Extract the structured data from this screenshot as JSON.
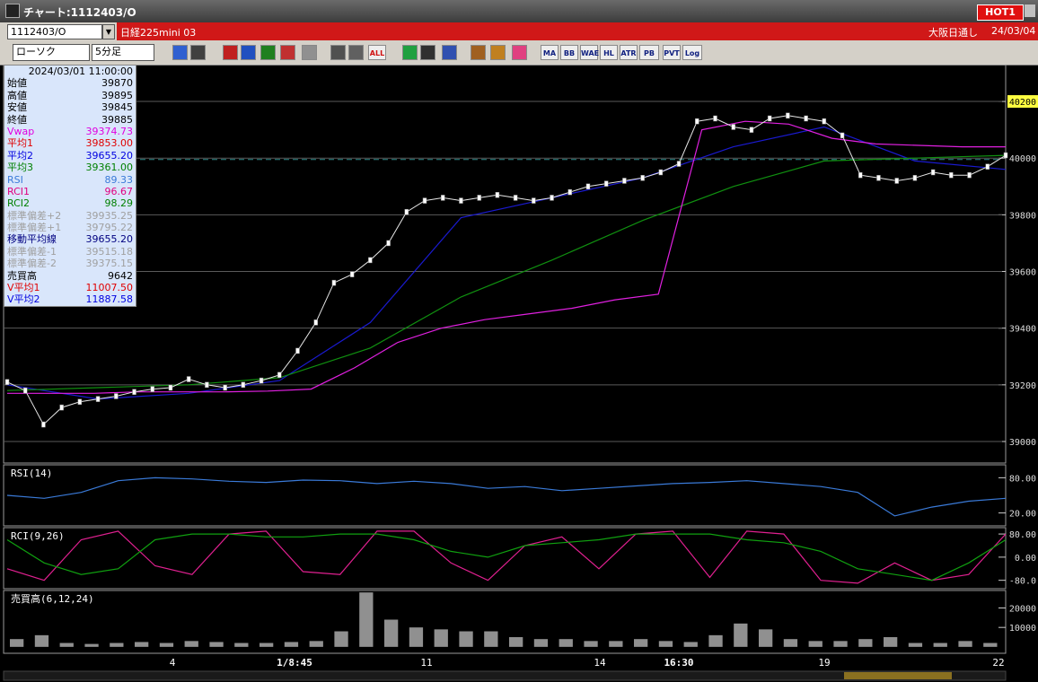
{
  "window": {
    "title": "チャート:1112403/O",
    "hot_button": "HOT1"
  },
  "header": {
    "symbol_code": "1112403/O",
    "symbol_name": "日経225mini 03",
    "session": "大阪日通し",
    "date": "24/03/04"
  },
  "toolbar": {
    "chart_style": "ローソク",
    "interval": "5分足",
    "buttons": [
      "ALL",
      "MA",
      "BB",
      "WAE",
      "HL",
      "ATR",
      "PB",
      "PVT",
      "Log"
    ]
  },
  "info_panel": {
    "timestamp": "2024/03/01 11:00:00",
    "rows": [
      {
        "label": "始値",
        "value": "39870",
        "color": "#000000"
      },
      {
        "label": "高値",
        "value": "39895",
        "color": "#000000"
      },
      {
        "label": "安値",
        "value": "39845",
        "color": "#000000"
      },
      {
        "label": "終値",
        "value": "39885",
        "color": "#000000"
      },
      {
        "label": "Vwap",
        "value": "39374.73",
        "color": "#e000e0"
      },
      {
        "label": "平均1",
        "value": "39853.00",
        "color": "#e00000"
      },
      {
        "label": "平均2",
        "value": "39655.20",
        "color": "#0000e0"
      },
      {
        "label": "平均3",
        "value": "39361.00",
        "color": "#008000"
      },
      {
        "label": "RSI",
        "value": "89.33",
        "color": "#3a7ad8"
      },
      {
        "label": "RCI1",
        "value": "96.67",
        "color": "#e00080"
      },
      {
        "label": "RCI2",
        "value": "98.29",
        "color": "#008000"
      },
      {
        "label": "標準偏差+2",
        "value": "39935.25",
        "color": "#a0a0a0"
      },
      {
        "label": "標準偏差+1",
        "value": "39795.22",
        "color": "#a0a0a0"
      },
      {
        "label": "移動平均線",
        "value": "39655.20",
        "color": "#000080"
      },
      {
        "label": "標準偏差-1",
        "value": "39515.18",
        "color": "#a0a0a0"
      },
      {
        "label": "標準偏差-2",
        "value": "39375.15",
        "color": "#a0a0a0"
      },
      {
        "label": "売買高",
        "value": "9642",
        "color": "#000000"
      },
      {
        "label": "V平均1",
        "value": "11007.50",
        "color": "#e00000"
      },
      {
        "label": "V平均2",
        "value": "11887.58",
        "color": "#0000e0"
      }
    ]
  },
  "price_panel": {
    "ylim": [
      38924,
      40330
    ],
    "yticks": [
      39000,
      39200,
      39400,
      39600,
      39800,
      40000,
      40200
    ],
    "highlight_tick": 40200,
    "dashed_level": 39995,
    "close": {
      "color": "#e8e8e8",
      "values": [
        39210,
        39180,
        39060,
        39120,
        39140,
        39150,
        39160,
        39175,
        39185,
        39190,
        39220,
        39200,
        39190,
        39200,
        39215,
        39235,
        39320,
        39420,
        39560,
        39590,
        39640,
        39700,
        39810,
        39850,
        39860,
        39850,
        39860,
        39870,
        39860,
        39850,
        39860,
        39880,
        39900,
        39910,
        39920,
        39930,
        39950,
        39980,
        40130,
        40140,
        40110,
        40100,
        40140,
        40150,
        40140,
        40130,
        40080,
        39940,
        39930,
        39920,
        39930,
        39950,
        39940,
        39940,
        39970,
        40010
      ]
    },
    "lines": [
      {
        "color": "#1a1ad0",
        "values": [
          39200,
          39150,
          39170,
          39215,
          39420,
          39790,
          39860,
          39930,
          40040,
          40110,
          39990,
          39960
        ]
      },
      {
        "color": "#109010",
        "values": [
          39180,
          39190,
          39200,
          39225,
          39330,
          39510,
          39640,
          39780,
          39900,
          39990,
          40000,
          40010
        ]
      },
      {
        "color": "#e020e0",
        "values": [
          39170,
          39170,
          39170,
          39175,
          39175,
          39175,
          39178,
          39185,
          39260,
          39350,
          39400,
          39430,
          39450,
          39470,
          39500,
          39520,
          40100,
          40130,
          40120,
          40070,
          40050,
          40045,
          40040,
          40040
        ]
      }
    ]
  },
  "rsi_panel": {
    "label": "RSI(14)",
    "ylim": [
      -2,
      102
    ],
    "yticks": [
      {
        "value": 80,
        "label": "80.00"
      },
      {
        "value": 20,
        "label": "20.00"
      }
    ],
    "lines": [
      {
        "color": "#3a7ad8",
        "values": [
          50,
          45,
          55,
          75,
          80,
          78,
          74,
          72,
          76,
          75,
          70,
          74,
          70,
          62,
          65,
          58,
          62,
          66,
          70,
          72,
          75,
          70,
          65,
          55,
          15,
          30,
          40,
          45
        ]
      }
    ]
  },
  "rci_panel": {
    "label": "RCI(9,26)",
    "ylim": [
      -109,
      102
    ],
    "yticks": [
      {
        "value": 80,
        "label": "80.00"
      },
      {
        "value": 0,
        "label": "0.00"
      },
      {
        "value": -80,
        "label": "-80.0"
      }
    ],
    "lines": [
      {
        "color": "#e02090",
        "values": [
          -40,
          -80,
          60,
          90,
          -30,
          -60,
          80,
          90,
          -50,
          -60,
          90,
          90,
          -20,
          -80,
          40,
          70,
          -40,
          80,
          90,
          -70,
          90,
          80,
          -80,
          -90,
          -20,
          -80,
          -60,
          80
        ]
      },
      {
        "color": "#10a010",
        "values": [
          60,
          -20,
          -60,
          -40,
          60,
          80,
          80,
          70,
          70,
          80,
          80,
          60,
          20,
          0,
          40,
          50,
          60,
          80,
          80,
          80,
          60,
          50,
          20,
          -40,
          -60,
          -80,
          -20,
          60
        ]
      }
    ]
  },
  "volume_panel": {
    "label": "売買高(6,12,24)",
    "ylim": [
      -3300,
      29000
    ],
    "yticks": [
      20000,
      10000
    ],
    "bar_color": "#909090",
    "values": [
      4000,
      6000,
      2000,
      1500,
      2000,
      2500,
      2000,
      3000,
      2500,
      2000,
      2000,
      2500,
      3000,
      8000,
      28000,
      14000,
      10000,
      9000,
      8000,
      8000,
      5000,
      4000,
      4000,
      3000,
      3000,
      4000,
      3000,
      2500,
      6000,
      12000,
      9000,
      4000,
      3000,
      3000,
      4000,
      5000,
      2000,
      2000,
      3000,
      2000
    ]
  },
  "time_axis": {
    "labels": [
      "4",
      "1/8:45",
      "11",
      "14",
      "16:30",
      "19",
      "22"
    ]
  }
}
